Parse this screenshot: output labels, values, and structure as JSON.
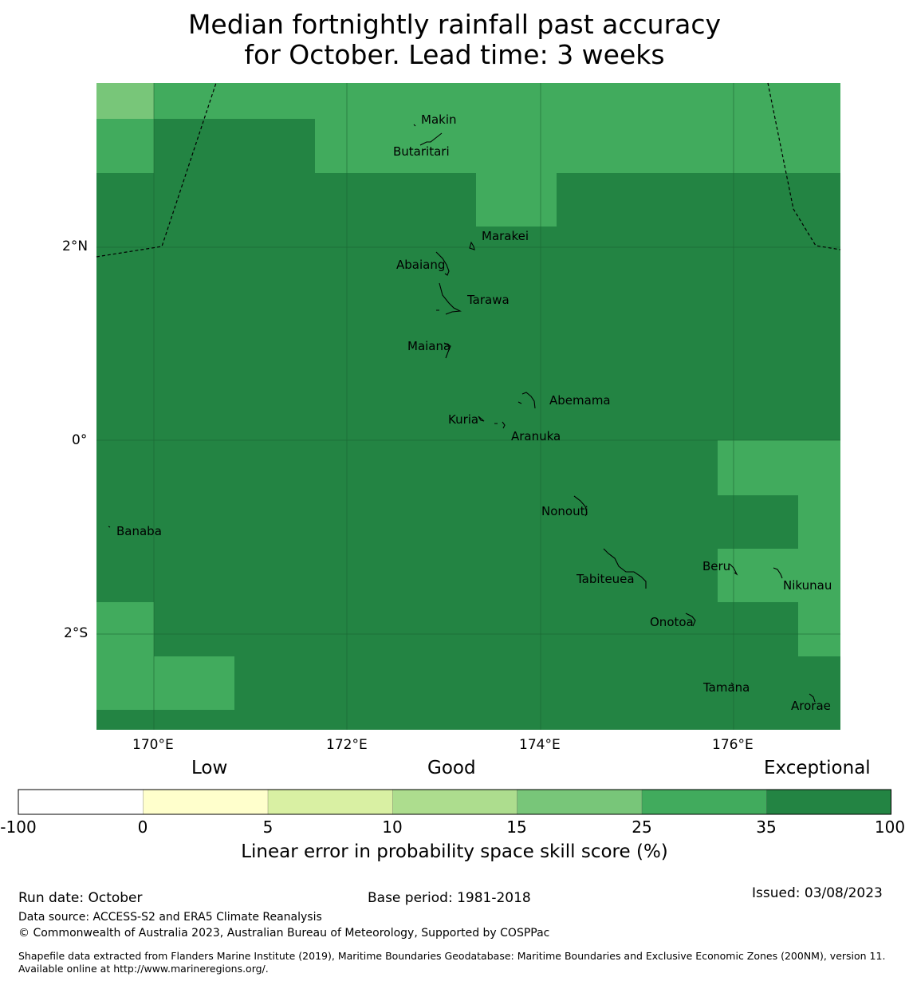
{
  "title_line1": "Median fortnightly rainfall past accuracy",
  "title_line2": "for October. Lead time: 3 weeks",
  "map": {
    "lat_labels": [
      "2°N",
      "0°",
      "2°S"
    ],
    "lon_labels": [
      "170°E",
      "172°E",
      "174°E",
      "176°E"
    ],
    "islands": [
      {
        "name": "Makin"
      },
      {
        "name": "Butaritari"
      },
      {
        "name": "Marakei"
      },
      {
        "name": "Abaiang"
      },
      {
        "name": "Tarawa"
      },
      {
        "name": "Maiana"
      },
      {
        "name": "Abemama"
      },
      {
        "name": "Kuria"
      },
      {
        "name": "Aranuka"
      },
      {
        "name": "Banaba"
      },
      {
        "name": "Nonouti"
      },
      {
        "name": "Beru"
      },
      {
        "name": "Tabiteuea"
      },
      {
        "name": "Nikunau"
      },
      {
        "name": "Onotoa"
      },
      {
        "name": "Tamana"
      },
      {
        "name": "Arorae"
      }
    ],
    "grid_note": "skill classes 15-25 (light), 25-35 (mid), 35-100 (dark)"
  },
  "colorbar": {
    "categories": [
      "Low",
      "Good",
      "Exceptional"
    ],
    "ticks": [
      "-100",
      "0",
      "5",
      "10",
      "15",
      "25",
      "35",
      "100"
    ],
    "colors": [
      "#ffffff",
      "#ffffcc",
      "#d9f0a3",
      "#addd8e",
      "#78c679",
      "#41ab5d",
      "#238443"
    ],
    "label": "Linear error in probability space skill score (%)"
  },
  "footer": {
    "run_date": "Run date: October",
    "base_period": "Base period: 1981-2018",
    "issued": "Issued: 03/08/2023",
    "data_source": "Data source: ACCESS-S2 and ERA5 Climate Reanalysis",
    "copyright": "© Commonwealth of Australia 2023, Australian Bureau of Meteorology, Supported by COSPPac",
    "shapefile": "Shapefile data extracted from Flanders Marine Institute (2019), Maritime Boundaries Geodatabase: Maritime Boundaries and Exclusive Economic Zones (200NM), version 11. Available online at http://www.marineregions.org/."
  }
}
